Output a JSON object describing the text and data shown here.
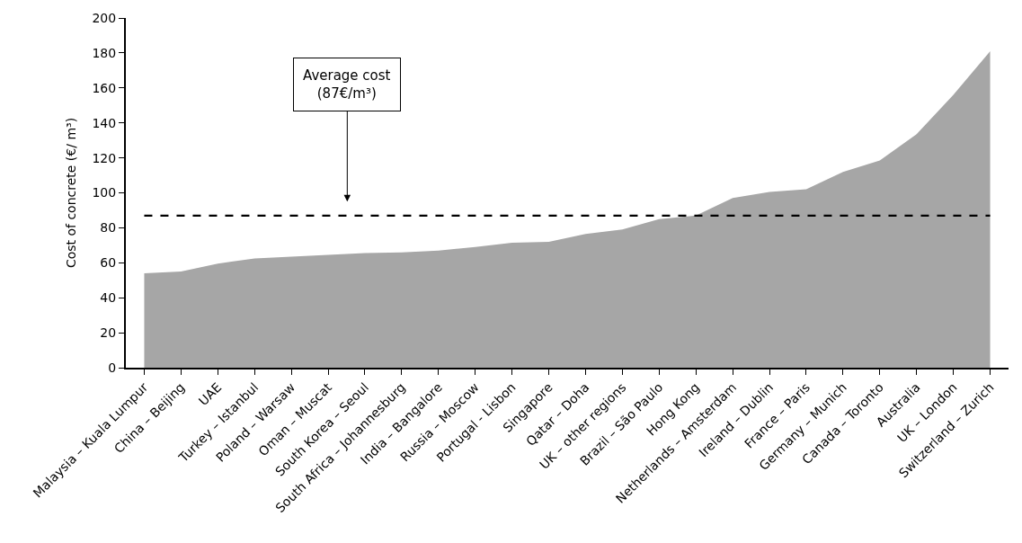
{
  "chart_data": {
    "type": "area",
    "ylabel": "Cost of concrete (€/ m³)",
    "categories": [
      "Malaysia – Kuala Lumpur",
      "China – Beijing",
      "UAE",
      "Turkey – Istanbul",
      "Poland – Warsaw",
      "Oman – Muscat",
      "South Korea – Seoul",
      "South Africa – Johannesburg",
      "India – Bangalore",
      "Russia – Moscow",
      "Portugal - Lisbon",
      "Singapore",
      "Qatar – Doha",
      "UK – other regions",
      "Brazil – São Paulo",
      "Hong Kong",
      "Netherlands – Amsterdam",
      "Ireland – Dublin",
      "France – Paris",
      "Germany – Munich",
      "Canada – Toronto",
      "Australia",
      "UK – London",
      "Switzerland – Zurich"
    ],
    "series": [
      {
        "color": "#a6a6a6",
        "values": [
          54,
          55,
          59.5,
          62.5,
          63.5,
          64.5,
          65.5,
          66,
          67,
          69,
          71.5,
          72,
          76.5,
          79,
          85,
          87,
          97,
          100.5,
          102,
          112,
          118.5,
          133.5,
          156,
          181
        ]
      }
    ],
    "ylim": [
      0,
      200
    ],
    "yticks": [
      0,
      20,
      40,
      60,
      80,
      100,
      120,
      140,
      160,
      180,
      200
    ],
    "ref_lines": [
      {
        "axis": "y",
        "value": 87,
        "label": "Average cost\n(87€/m³)",
        "color": "#000000",
        "line_style": "dashed"
      }
    ]
  }
}
